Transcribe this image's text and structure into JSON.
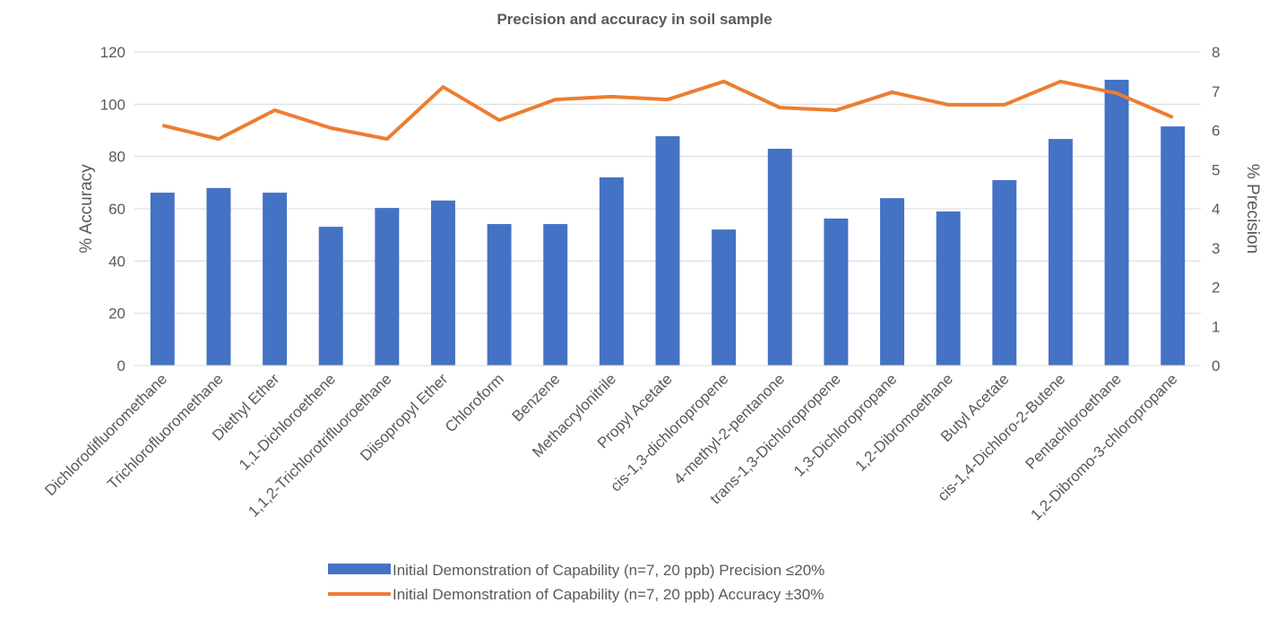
{
  "chart_data": {
    "type": "bar_line",
    "title": "Precision and accuracy in soil sample",
    "y_label": "% Accuracy",
    "y2_label": "% Precision",
    "categories": [
      "Dichlorodifluoromethane",
      "Trichlorofluoromethane",
      "Diethyl Ether",
      "1,1-Dichloroethene",
      "1,1,2-Trichlorotrifluoroethane",
      "Diisopropyl Ether",
      "Chloroform",
      "Benzene",
      "Methacrylonitrile",
      "Propyl Acetate",
      "cis-1,3-dichloropropene",
      "4-methyl-2-pentanone",
      "trans-1,3-Dichloropropene",
      "1,3-Dichloropropane",
      "1,2-Dibromoethane",
      "Butyl Acetate",
      "cis-1,4-Dichloro-2-Butene",
      "Pentachloroethane",
      "1,2-Dibromo-3-chloropropane"
    ],
    "series": [
      {
        "name": "Initial Demonstration of Capability (n=7, 20 ppb) Precision ≤20%",
        "kind": "bar",
        "axis": "y2",
        "color": "#4472c4",
        "values": [
          4.41,
          4.53,
          4.41,
          3.54,
          4.02,
          4.21,
          3.61,
          3.61,
          4.8,
          5.85,
          3.47,
          5.53,
          3.75,
          4.27,
          3.93,
          4.73,
          5.78,
          7.29,
          6.1
        ]
      },
      {
        "name": "Initial Demonstration of Capability (n=7, 20 ppb) Accuracy ±30%",
        "kind": "line",
        "axis": "y",
        "color": "#ed7d31",
        "values": [
          91.9,
          86.7,
          97.7,
          90.9,
          86.7,
          106.6,
          93.9,
          101.8,
          102.9,
          101.8,
          108.7,
          98.7,
          97.7,
          104.6,
          99.8,
          99.8,
          108.7,
          104.2,
          95.0
        ]
      }
    ],
    "ylim": [
      0,
      120
    ],
    "yticks": [
      0,
      20,
      40,
      60,
      80,
      100,
      120
    ],
    "y2lim": [
      0,
      8
    ],
    "y2ticks": [
      0,
      1,
      2,
      3,
      4,
      5,
      6,
      7,
      8
    ],
    "grid": true
  }
}
